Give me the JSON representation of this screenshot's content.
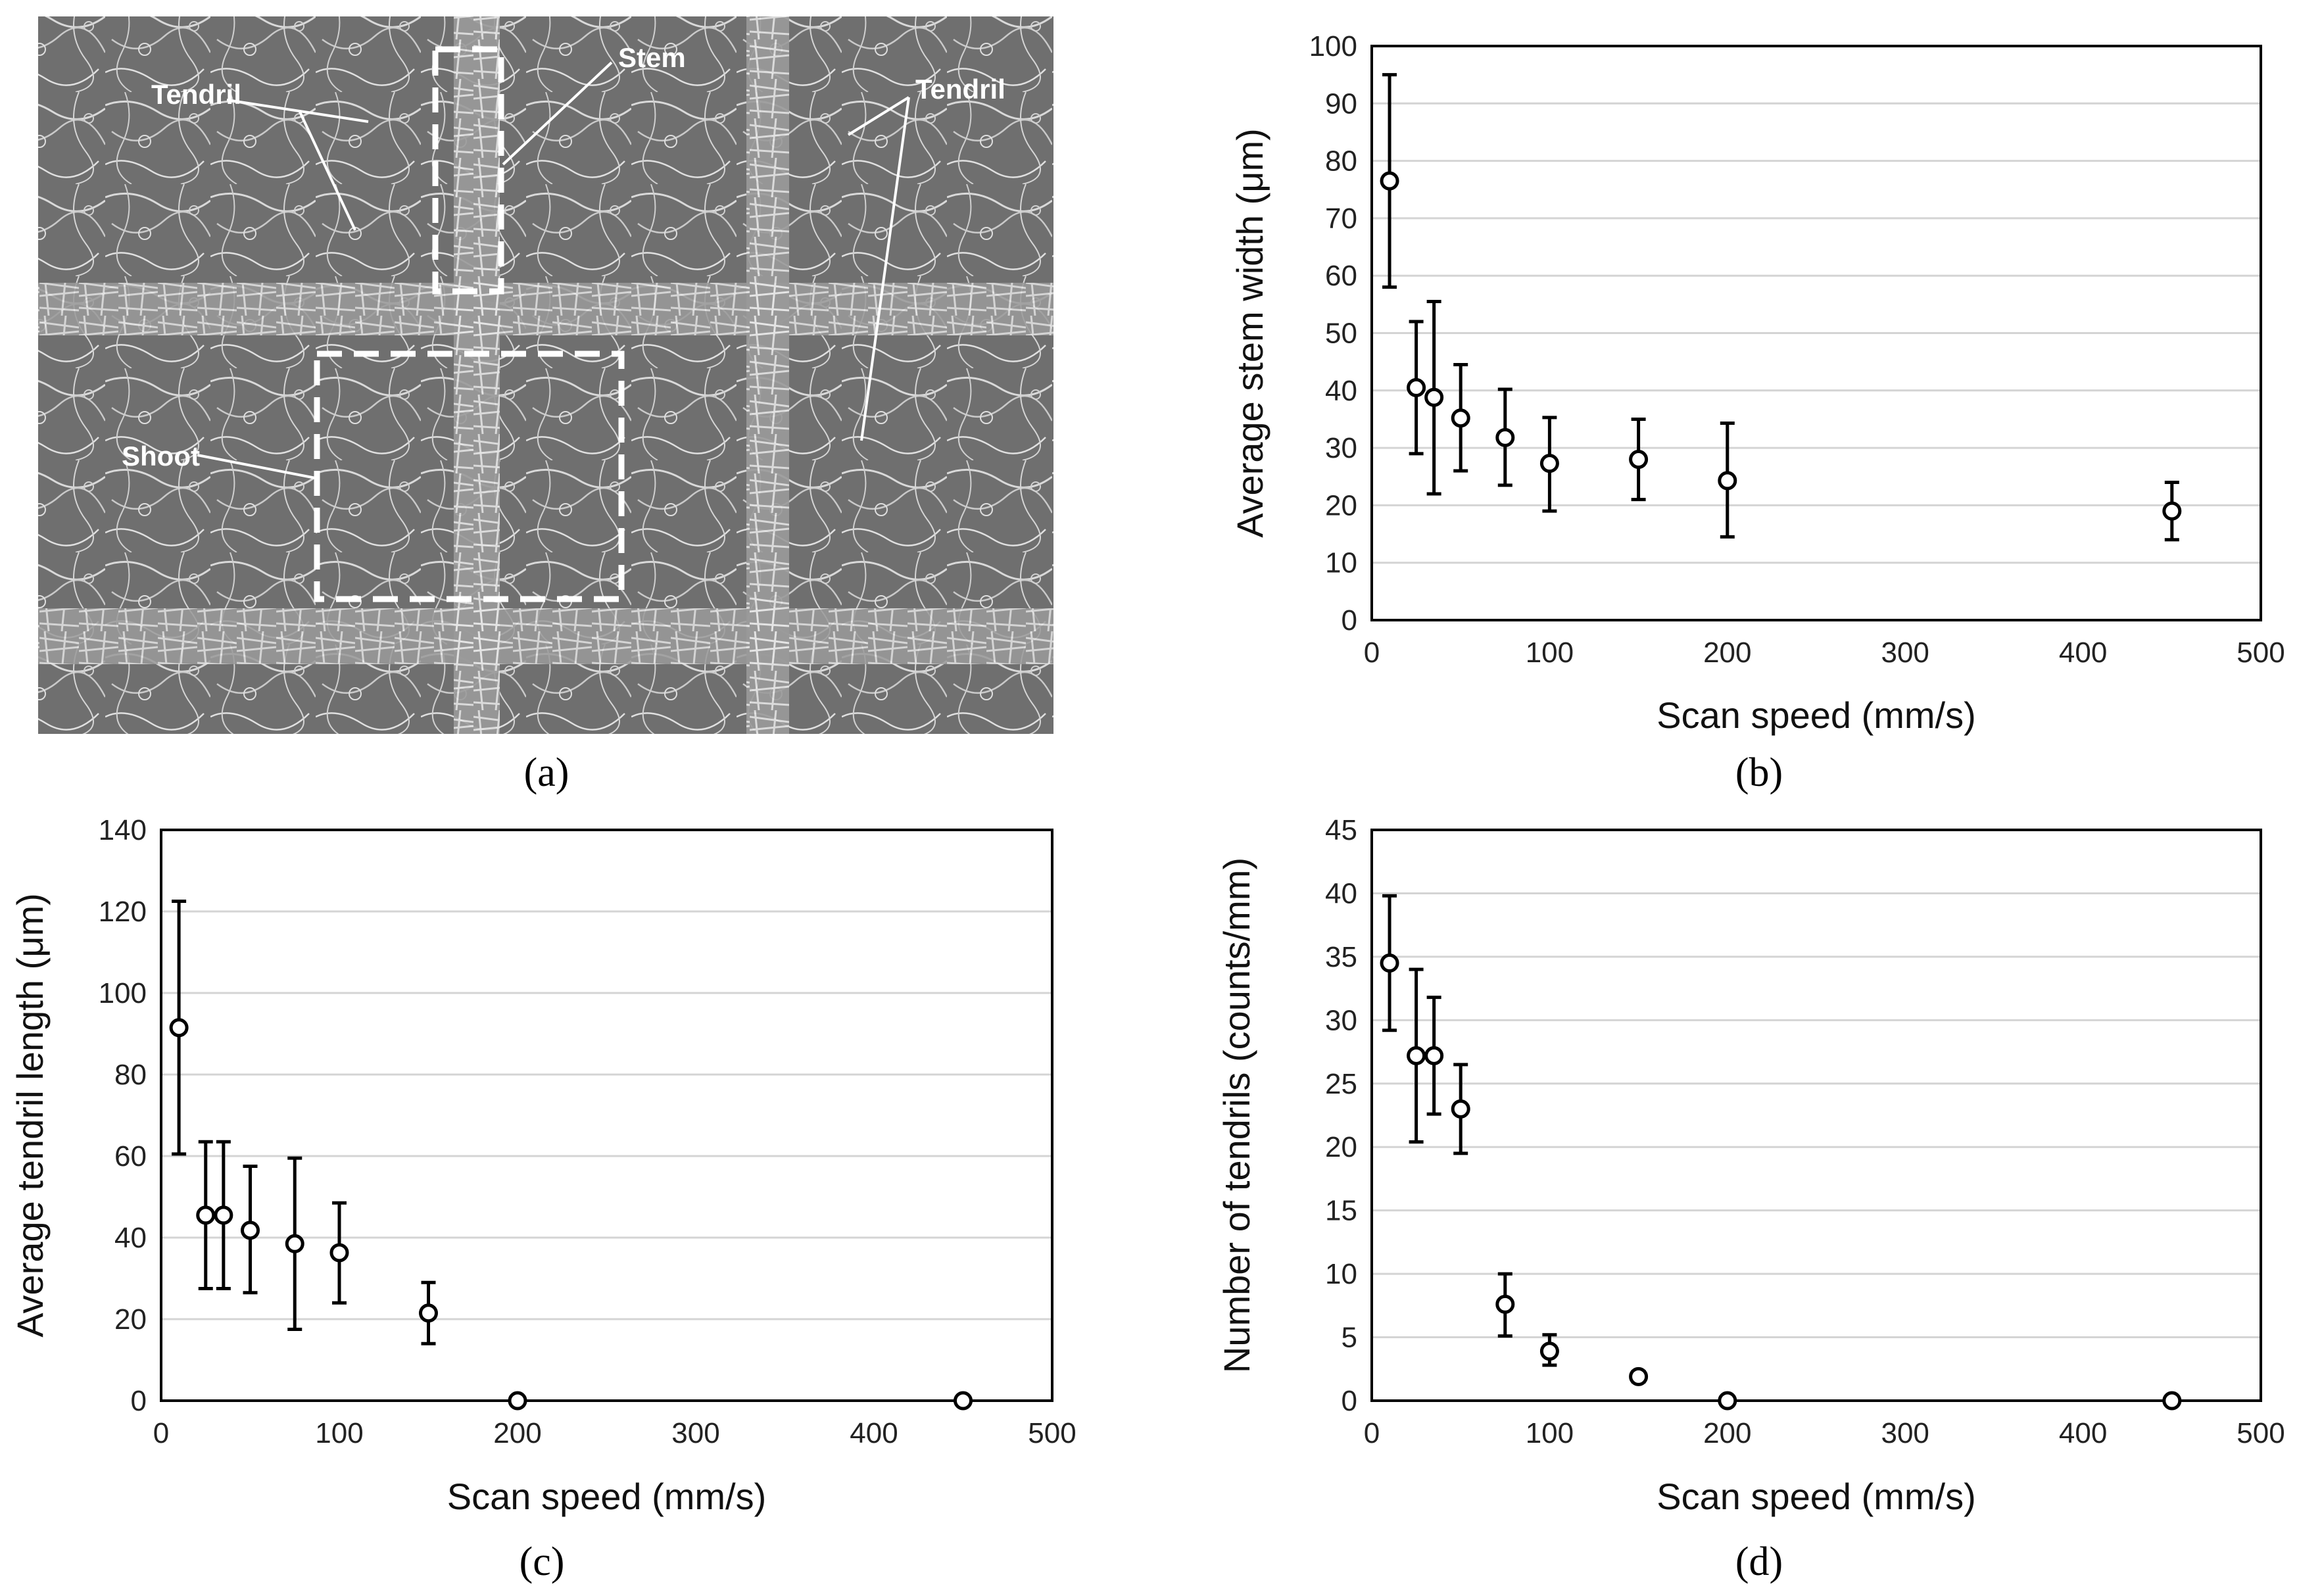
{
  "figure": {
    "panel_labels": [
      "(a)",
      "(b)",
      "(c)",
      "(d)"
    ],
    "sem_image": {
      "labels": [
        "Tendril",
        "Stem",
        "Tendril",
        "Shoot"
      ],
      "colors": {
        "background": "#6d6d6d",
        "fibers": "#d8d8d8",
        "annotation": "#ffffff"
      }
    }
  },
  "chart_data": [
    {
      "type": "scatter",
      "panel": "b",
      "title": "",
      "xlabel": "Scan speed (mm/s)",
      "ylabel": "Average stem width (μm)",
      "xlim": [
        0,
        500
      ],
      "ylim": [
        0,
        100
      ],
      "xticks": [
        0,
        100,
        200,
        300,
        400,
        500
      ],
      "yticks": [
        0,
        10,
        20,
        30,
        40,
        50,
        60,
        70,
        80,
        90,
        100
      ],
      "grid": "horizontal",
      "x": [
        10,
        25,
        35,
        50,
        75,
        100,
        150,
        200,
        450
      ],
      "y": [
        76.5,
        40.5,
        38.8,
        35.2,
        31.8,
        27.3,
        28,
        24.3,
        19
      ],
      "y_low": [
        58,
        29,
        22,
        26,
        23.5,
        19,
        21,
        14.5,
        14
      ],
      "y_high": [
        95,
        52,
        55.5,
        44.5,
        40.2,
        35.3,
        35,
        34.3,
        24
      ]
    },
    {
      "type": "scatter",
      "panel": "c",
      "title": "",
      "xlabel": "Scan speed (mm/s)",
      "ylabel": "Average tendril length (μm)",
      "xlim": [
        0,
        500
      ],
      "ylim": [
        0,
        140
      ],
      "xticks": [
        0,
        100,
        200,
        300,
        400,
        500
      ],
      "yticks": [
        0,
        20,
        40,
        60,
        80,
        100,
        120,
        140
      ],
      "grid": "horizontal",
      "x": [
        10,
        25,
        35,
        50,
        75,
        100,
        150,
        200,
        450
      ],
      "y": [
        91.5,
        45.5,
        45.5,
        41.8,
        38.5,
        36.3,
        21.5,
        0,
        0
      ],
      "y_low": [
        60.5,
        27.5,
        27.5,
        26.5,
        17.5,
        24,
        14,
        0,
        0
      ],
      "y_high": [
        122.5,
        63.5,
        63.5,
        57.5,
        59.5,
        48.5,
        29,
        0,
        0
      ]
    },
    {
      "type": "scatter",
      "panel": "d",
      "title": "",
      "xlabel": "Scan speed (mm/s)",
      "ylabel": "Number of tendrils (counts/mm)",
      "xlim": [
        0,
        500
      ],
      "ylim": [
        0,
        45
      ],
      "xticks": [
        0,
        100,
        200,
        300,
        400,
        500
      ],
      "yticks": [
        0,
        5,
        10,
        15,
        20,
        25,
        30,
        35,
        40,
        45
      ],
      "grid": "horizontal",
      "x": [
        10,
        25,
        35,
        50,
        75,
        100,
        150,
        200,
        450
      ],
      "y": [
        34.5,
        27.2,
        27.2,
        23,
        7.6,
        3.9,
        1.9,
        0,
        0
      ],
      "y_low": [
        29.2,
        20.4,
        22.6,
        19.5,
        5.1,
        2.8,
        1.5,
        0,
        0
      ],
      "y_high": [
        39.8,
        34,
        31.8,
        26.5,
        10,
        5.2,
        2.3,
        0,
        0
      ]
    }
  ]
}
